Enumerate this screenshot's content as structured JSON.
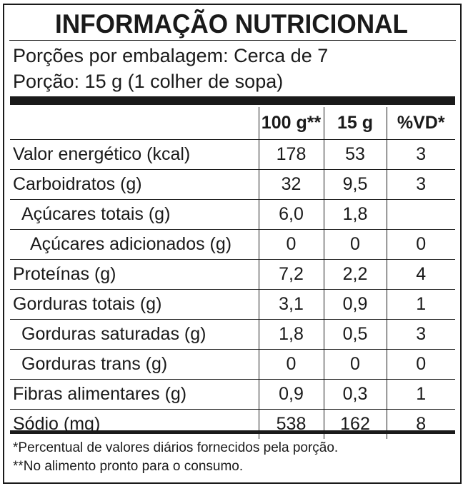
{
  "title": "INFORMAÇÃO NUTRICIONAL",
  "servings_per_package": "Porções por embalagem: Cerca de 7",
  "serving_size": "Porção: 15 g (1 colher de sopa)",
  "columns": [
    "100 g**",
    "15 g",
    "%VD*"
  ],
  "rows": [
    {
      "label": "Valor energético (kcal)",
      "level": 0,
      "values": [
        "178",
        "53",
        "3"
      ]
    },
    {
      "label": "Carboidratos (g)",
      "level": 0,
      "values": [
        "32",
        "9,5",
        "3"
      ]
    },
    {
      "label": "Açúcares totais (g)",
      "level": 1,
      "values": [
        "6,0",
        "1,8",
        ""
      ]
    },
    {
      "label": "Açúcares adicionados (g)",
      "level": 2,
      "values": [
        "0",
        "0",
        "0"
      ]
    },
    {
      "label": "Proteínas (g)",
      "level": 0,
      "values": [
        "7,2",
        "2,2",
        "4"
      ]
    },
    {
      "label": "Gorduras totais (g)",
      "level": 0,
      "values": [
        "3,1",
        "0,9",
        "1"
      ]
    },
    {
      "label": "Gorduras saturadas (g)",
      "level": 1,
      "values": [
        "1,8",
        "0,5",
        "3"
      ]
    },
    {
      "label": "Gorduras trans (g)",
      "level": 1,
      "values": [
        "0",
        "0",
        "0"
      ]
    },
    {
      "label": "Fibras alimentares (g)",
      "level": 0,
      "values": [
        "0,9",
        "0,3",
        "1"
      ]
    },
    {
      "label": "Sódio (mg)",
      "level": 0,
      "values": [
        "538",
        "162",
        "8"
      ]
    }
  ],
  "footnotes": [
    "*Percentual de valores diários fornecidos pela porção.",
    "**No alimento pronto para o consumo."
  ]
}
